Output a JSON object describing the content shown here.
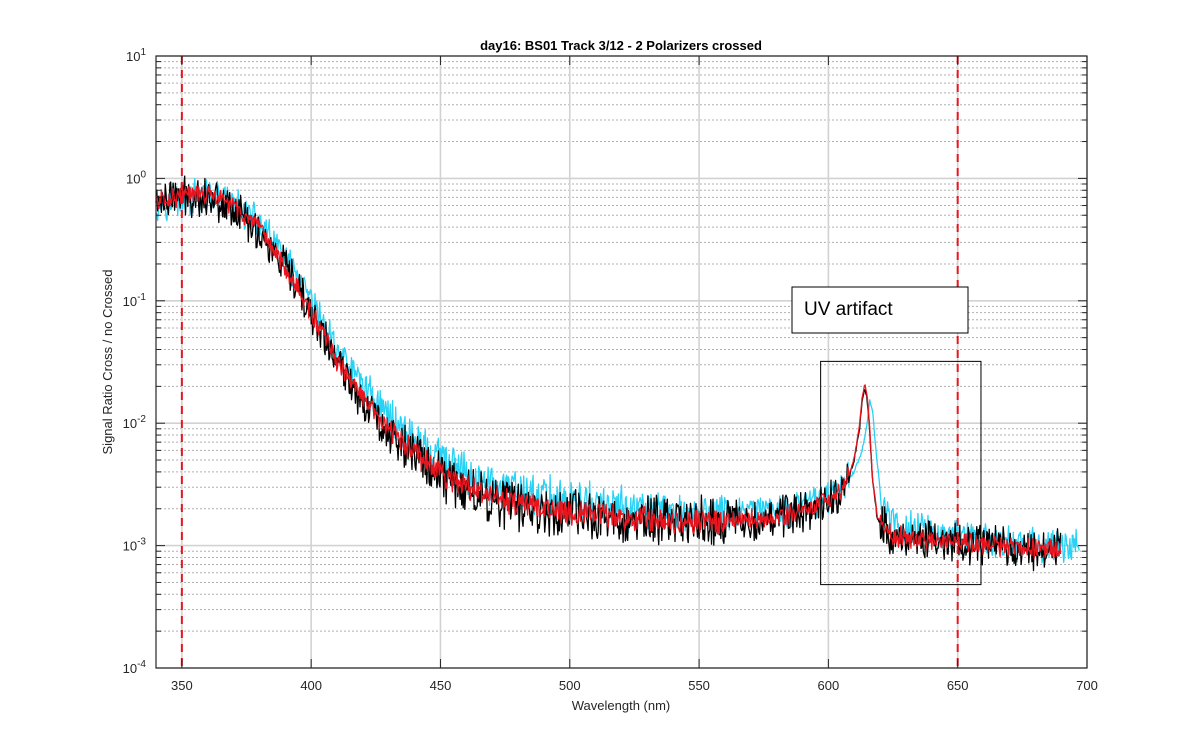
{
  "chart_data": {
    "type": "line",
    "title": "day16: BS01  Track 3/12 - 2 Polarizers crossed",
    "xlabel": "Wavelength (nm)",
    "ylabel": "Signal Ratio Cross / no Crossed",
    "xlim": [
      340,
      700
    ],
    "ylim": [
      0.0001,
      10
    ],
    "yscale": "log",
    "grid": true,
    "x_ticks": [
      "350",
      "400",
      "450",
      "500",
      "550",
      "600",
      "650",
      "700"
    ],
    "y_ticks": [
      {
        "base": "10",
        "exp": "-4"
      },
      {
        "base": "10",
        "exp": "-3"
      },
      {
        "base": "10",
        "exp": "-2"
      },
      {
        "base": "10",
        "exp": "-1"
      },
      {
        "base": "10",
        "exp": "0"
      },
      {
        "base": "10",
        "exp": "1"
      }
    ],
    "vertical_lines": [
      {
        "x": 350,
        "color": "#e8141e",
        "style": "dashed"
      },
      {
        "x": 650,
        "color": "#e8141e",
        "style": "dashed"
      }
    ],
    "annotation": {
      "text": "UV artifact",
      "region_x": [
        597,
        659
      ],
      "region_y": [
        0.00048,
        0.032
      ]
    },
    "series": [
      {
        "color": "#28d2f5",
        "x_end": 697,
        "noise": 0.22,
        "values": [
          [
            340,
            0.62
          ],
          [
            350,
            0.68
          ],
          [
            360,
            0.72
          ],
          [
            370,
            0.62
          ],
          [
            380,
            0.42
          ],
          [
            390,
            0.22
          ],
          [
            400,
            0.095
          ],
          [
            405,
            0.062
          ],
          [
            410,
            0.04
          ],
          [
            420,
            0.021
          ],
          [
            430,
            0.0115
          ],
          [
            440,
            0.0072
          ],
          [
            450,
            0.005
          ],
          [
            460,
            0.0038
          ],
          [
            470,
            0.0031
          ],
          [
            480,
            0.0027
          ],
          [
            500,
            0.0023
          ],
          [
            520,
            0.002
          ],
          [
            540,
            0.0018
          ],
          [
            560,
            0.0018
          ],
          [
            580,
            0.0019
          ],
          [
            590,
            0.0021
          ],
          [
            600,
            0.0026
          ],
          [
            605,
            0.0031
          ],
          [
            610,
            0.004
          ],
          [
            613,
            0.006
          ],
          [
            615,
            0.01
          ],
          [
            616,
            0.015
          ],
          [
            617,
            0.013
          ],
          [
            619,
            0.0045
          ],
          [
            621,
            0.0019
          ],
          [
            625,
            0.0015
          ],
          [
            640,
            0.0013
          ],
          [
            660,
            0.0011
          ],
          [
            680,
            0.001
          ],
          [
            697,
            0.001
          ]
        ]
      },
      {
        "color": "#000000",
        "x_end": 690,
        "noise": 0.26,
        "values": [
          [
            340,
            0.65
          ],
          [
            350,
            0.72
          ],
          [
            360,
            0.72
          ],
          [
            370,
            0.58
          ],
          [
            380,
            0.36
          ],
          [
            390,
            0.18
          ],
          [
            400,
            0.078
          ],
          [
            405,
            0.05
          ],
          [
            410,
            0.031
          ],
          [
            420,
            0.0155
          ],
          [
            430,
            0.0085
          ],
          [
            440,
            0.0055
          ],
          [
            450,
            0.0038
          ],
          [
            460,
            0.0029
          ],
          [
            470,
            0.0024
          ],
          [
            480,
            0.0021
          ],
          [
            500,
            0.0018
          ],
          [
            520,
            0.0016
          ],
          [
            540,
            0.0016
          ],
          [
            560,
            0.0016
          ],
          [
            580,
            0.0017
          ],
          [
            590,
            0.0019
          ],
          [
            600,
            0.0023
          ],
          [
            605,
            0.0028
          ],
          [
            608,
            0.0036
          ],
          [
            610,
            0.005
          ],
          [
            612,
            0.009
          ],
          [
            613,
            0.015
          ],
          [
            614,
            0.019
          ],
          [
            615,
            0.016
          ],
          [
            616,
            0.0085
          ],
          [
            617,
            0.0035
          ],
          [
            619,
            0.0016
          ],
          [
            625,
            0.0012
          ],
          [
            640,
            0.0011
          ],
          [
            660,
            0.001
          ],
          [
            680,
            0.00095
          ],
          [
            690,
            0.00092
          ]
        ]
      },
      {
        "color": "#e8141e",
        "x_end": 690,
        "noise": 0.13,
        "values": [
          [
            340,
            0.65
          ],
          [
            350,
            0.73
          ],
          [
            360,
            0.74
          ],
          [
            370,
            0.6
          ],
          [
            380,
            0.38
          ],
          [
            390,
            0.19
          ],
          [
            400,
            0.08
          ],
          [
            405,
            0.052
          ],
          [
            410,
            0.032
          ],
          [
            420,
            0.016
          ],
          [
            430,
            0.0088
          ],
          [
            440,
            0.0057
          ],
          [
            450,
            0.0039
          ],
          [
            460,
            0.003
          ],
          [
            470,
            0.0025
          ],
          [
            480,
            0.0022
          ],
          [
            500,
            0.0019
          ],
          [
            520,
            0.0017
          ],
          [
            540,
            0.0016
          ],
          [
            560,
            0.0016
          ],
          [
            580,
            0.0017
          ],
          [
            590,
            0.0019
          ],
          [
            600,
            0.0024
          ],
          [
            605,
            0.0029
          ],
          [
            608,
            0.0037
          ],
          [
            610,
            0.0052
          ],
          [
            612,
            0.0095
          ],
          [
            613,
            0.016
          ],
          [
            614,
            0.021
          ],
          [
            615,
            0.017
          ],
          [
            616,
            0.009
          ],
          [
            617,
            0.0036
          ],
          [
            619,
            0.0017
          ],
          [
            625,
            0.0012
          ],
          [
            640,
            0.0011
          ],
          [
            660,
            0.00102
          ],
          [
            680,
            0.00096
          ],
          [
            690,
            0.00093
          ]
        ]
      }
    ]
  }
}
